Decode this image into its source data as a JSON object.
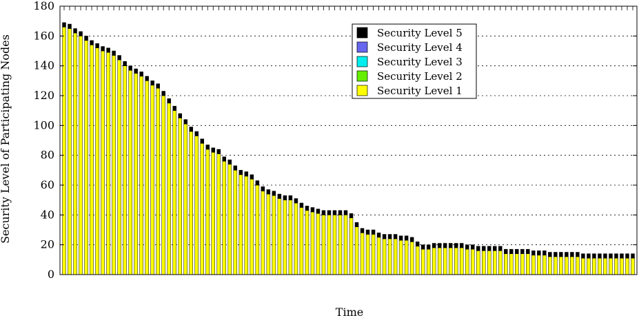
{
  "chart_data": {
    "type": "bar",
    "stacked": true,
    "title": "",
    "xlabel": "Time",
    "ylabel": "Security Level of Participating Nodes",
    "ylim": [
      0,
      180
    ],
    "yticks": [
      0,
      20,
      40,
      60,
      80,
      100,
      120,
      140,
      160,
      180
    ],
    "grid": "horizontal-dotted",
    "legend_position": "top-right",
    "legend": [
      "Security Level 5",
      "Security Level 4",
      "Security Level 3",
      "Security Level 2",
      "Security Level 1"
    ],
    "colors": {
      "Security Level 5": "#000000",
      "Security Level 4": "#6666ee",
      "Security Level 3": "#00eeee",
      "Security Level 2": "#66ee00",
      "Security Level 1": "#ffff00"
    },
    "series": [
      {
        "name": "Security Level 1",
        "values": [
          166,
          165,
          162,
          160,
          157,
          154,
          152,
          150,
          149,
          147,
          144,
          140,
          137,
          135,
          133,
          130,
          127,
          125,
          120,
          115,
          110,
          105,
          101,
          96,
          93,
          88,
          84,
          82,
          81,
          76,
          74,
          70,
          67,
          66,
          64,
          60,
          56,
          54,
          53,
          51,
          50,
          50,
          48,
          45,
          43,
          42,
          41,
          40,
          40,
          40,
          40,
          40,
          38,
          32,
          28,
          27,
          27,
          25,
          24,
          24,
          24,
          23,
          23,
          22,
          19,
          17,
          17,
          18,
          18,
          18,
          18,
          18,
          18,
          17,
          17,
          16,
          16,
          16,
          16,
          16,
          14,
          14,
          14,
          14,
          14,
          13,
          13,
          13,
          12,
          12,
          12,
          12,
          12,
          12,
          11,
          11,
          11,
          11,
          11,
          11,
          11,
          11,
          11,
          11
        ]
      },
      {
        "name": "Security Level 2",
        "values": [
          0,
          0,
          0,
          0,
          0,
          0,
          0,
          0,
          0,
          0,
          0,
          0,
          0,
          0,
          0,
          0,
          0,
          0,
          0,
          0,
          0,
          0,
          0,
          0,
          0,
          0,
          0,
          0,
          0,
          0,
          0,
          0,
          0,
          0,
          0,
          0,
          0,
          0,
          0,
          0,
          0,
          0,
          0,
          0,
          0,
          0,
          0,
          0,
          0,
          0,
          0,
          0,
          0,
          0,
          0,
          0,
          0,
          0,
          0,
          0,
          0,
          0,
          0,
          0,
          0,
          0,
          0,
          0,
          0,
          0,
          0,
          0,
          0,
          0,
          0,
          0,
          0,
          0,
          0,
          0,
          0,
          0,
          0,
          0,
          0,
          0,
          0,
          0,
          0,
          0,
          0,
          0,
          0,
          0,
          0,
          0,
          0,
          0,
          0,
          0,
          0,
          0,
          0,
          0
        ]
      },
      {
        "name": "Security Level 3",
        "values": [
          0,
          0,
          0,
          0,
          0,
          0,
          0,
          0,
          0,
          0,
          0,
          0,
          0,
          0,
          0,
          0,
          0,
          0,
          0,
          0,
          0,
          0,
          0,
          0,
          0,
          0,
          0,
          0,
          0,
          0,
          0,
          0,
          0,
          0,
          0,
          0,
          0,
          0,
          0,
          0,
          0,
          0,
          0,
          0,
          0,
          0,
          0,
          0,
          0,
          0,
          0,
          0,
          0,
          0,
          0,
          0,
          0,
          0,
          0,
          0,
          0,
          0,
          0,
          0,
          0,
          0,
          0,
          0,
          0,
          0,
          0,
          0,
          0,
          0,
          0,
          0,
          0,
          0,
          0,
          0,
          0,
          0,
          0,
          0,
          0,
          0,
          0,
          0,
          0,
          0,
          0,
          0,
          0,
          0,
          0,
          0,
          0,
          0,
          0,
          0,
          0,
          0,
          0,
          0
        ]
      },
      {
        "name": "Security Level 4",
        "values": [
          0,
          0,
          0,
          0,
          0,
          0,
          0,
          0,
          0,
          0,
          0,
          0,
          0,
          0,
          0,
          0,
          0,
          0,
          0,
          0,
          0,
          0,
          0,
          0,
          0,
          0,
          0,
          0,
          0,
          0,
          0,
          0,
          0,
          0,
          0,
          0,
          0,
          0,
          0,
          0,
          0,
          0,
          0,
          0,
          0,
          0,
          0,
          0,
          0,
          0,
          0,
          0,
          0,
          0,
          0,
          0,
          0,
          0,
          0,
          0,
          0,
          0,
          0,
          0,
          0,
          0,
          0,
          0,
          0,
          0,
          0,
          0,
          0,
          0,
          0,
          0,
          0,
          0,
          0,
          0,
          0,
          0,
          0,
          0,
          0,
          0,
          0,
          0,
          0,
          0,
          0,
          0,
          0,
          0,
          0,
          0,
          0,
          0,
          0,
          0,
          0,
          0,
          0,
          0
        ]
      },
      {
        "name": "Security Level 5",
        "values": [
          3,
          3,
          3,
          3,
          3,
          3,
          3,
          3,
          3,
          3,
          3,
          3,
          3,
          3,
          3,
          3,
          3,
          3,
          3,
          3,
          3,
          3,
          3,
          3,
          3,
          3,
          3,
          3,
          3,
          3,
          3,
          3,
          3,
          3,
          3,
          3,
          3,
          3,
          3,
          3,
          3,
          3,
          3,
          3,
          3,
          3,
          3,
          3,
          3,
          3,
          3,
          3,
          3,
          3,
          3,
          3,
          3,
          3,
          3,
          3,
          3,
          3,
          3,
          3,
          3,
          3,
          3,
          3,
          3,
          3,
          3,
          3,
          3,
          3,
          3,
          3,
          3,
          3,
          3,
          3,
          3,
          3,
          3,
          3,
          3,
          3,
          3,
          3,
          3,
          3,
          3,
          3,
          3,
          3,
          3,
          3,
          3,
          3,
          3,
          3,
          3,
          3,
          3,
          3
        ]
      }
    ]
  }
}
